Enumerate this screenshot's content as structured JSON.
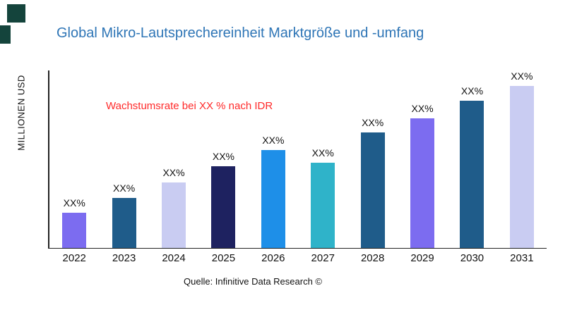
{
  "title": {
    "text": "Global Mikro-Lautsprechereinheit Marktgröße und -umfang",
    "color": "#2E75B6"
  },
  "ylabel": "MILLIONEN USD",
  "annotation": {
    "text": "Wachstumsrate bei XX % nach IDR",
    "color": "#FF2A2A"
  },
  "source": "Quelle: Infinitive Data Research ©",
  "decor": {
    "square_color": "#14443C"
  },
  "chart_data": {
    "type": "bar",
    "categories": [
      "2022",
      "2023",
      "2024",
      "2025",
      "2026",
      "2027",
      "2028",
      "2029",
      "2030",
      "2031"
    ],
    "values": [
      20,
      28,
      37,
      46,
      55,
      48,
      65,
      73,
      83,
      92
    ],
    "bar_labels": [
      "XX%",
      "XX%",
      "XX%",
      "XX%",
      "XX%",
      "XX%",
      "XX%",
      "XX%",
      "XX%",
      "XX%"
    ],
    "bar_colors": [
      "#7C6CF0",
      "#1F5C8A",
      "#C9CCF2",
      "#1E2260",
      "#1E8FE8",
      "#2FB3C9",
      "#1F5C8A",
      "#7C6CF0",
      "#1F5C8A",
      "#C9CCF2"
    ],
    "title": "Global Mikro-Lautsprechereinheit Marktgröße und -umfang",
    "xlabel": "",
    "ylabel": "MILLIONEN USD",
    "ylim": [
      0,
      100
    ],
    "grid": false,
    "legend": false
  }
}
